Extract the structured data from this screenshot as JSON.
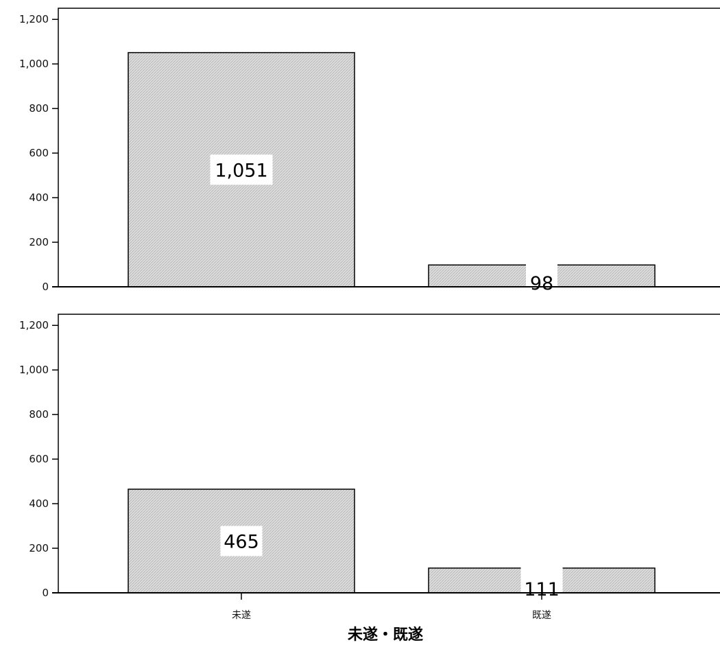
{
  "chart_data": [
    {
      "type": "bar",
      "categories": [
        "未遂",
        "既遂"
      ],
      "values": [
        1051,
        98
      ],
      "data_labels": [
        "1,051",
        "98"
      ],
      "ylim": [
        0,
        1250
      ],
      "yticks": [
        0,
        200,
        400,
        600,
        800,
        1000,
        1200
      ],
      "ytick_labels": [
        "0",
        "200",
        "400",
        "600",
        "800",
        "1,000",
        "1,200"
      ],
      "title": "",
      "xlabel": "",
      "ylabel": "",
      "grid": false,
      "bar_fill": "#d6d6d6"
    },
    {
      "type": "bar",
      "categories": [
        "未遂",
        "既遂"
      ],
      "values": [
        465,
        111
      ],
      "data_labels": [
        "465",
        "111"
      ],
      "ylim": [
        0,
        1250
      ],
      "yticks": [
        0,
        200,
        400,
        600,
        800,
        1000,
        1200
      ],
      "ytick_labels": [
        "0",
        "200",
        "400",
        "600",
        "800",
        "1,000",
        "1,200"
      ],
      "title": "",
      "xlabel": "未遂・既遂",
      "ylabel": "",
      "grid": false,
      "bar_fill": "#d6d6d6"
    }
  ]
}
